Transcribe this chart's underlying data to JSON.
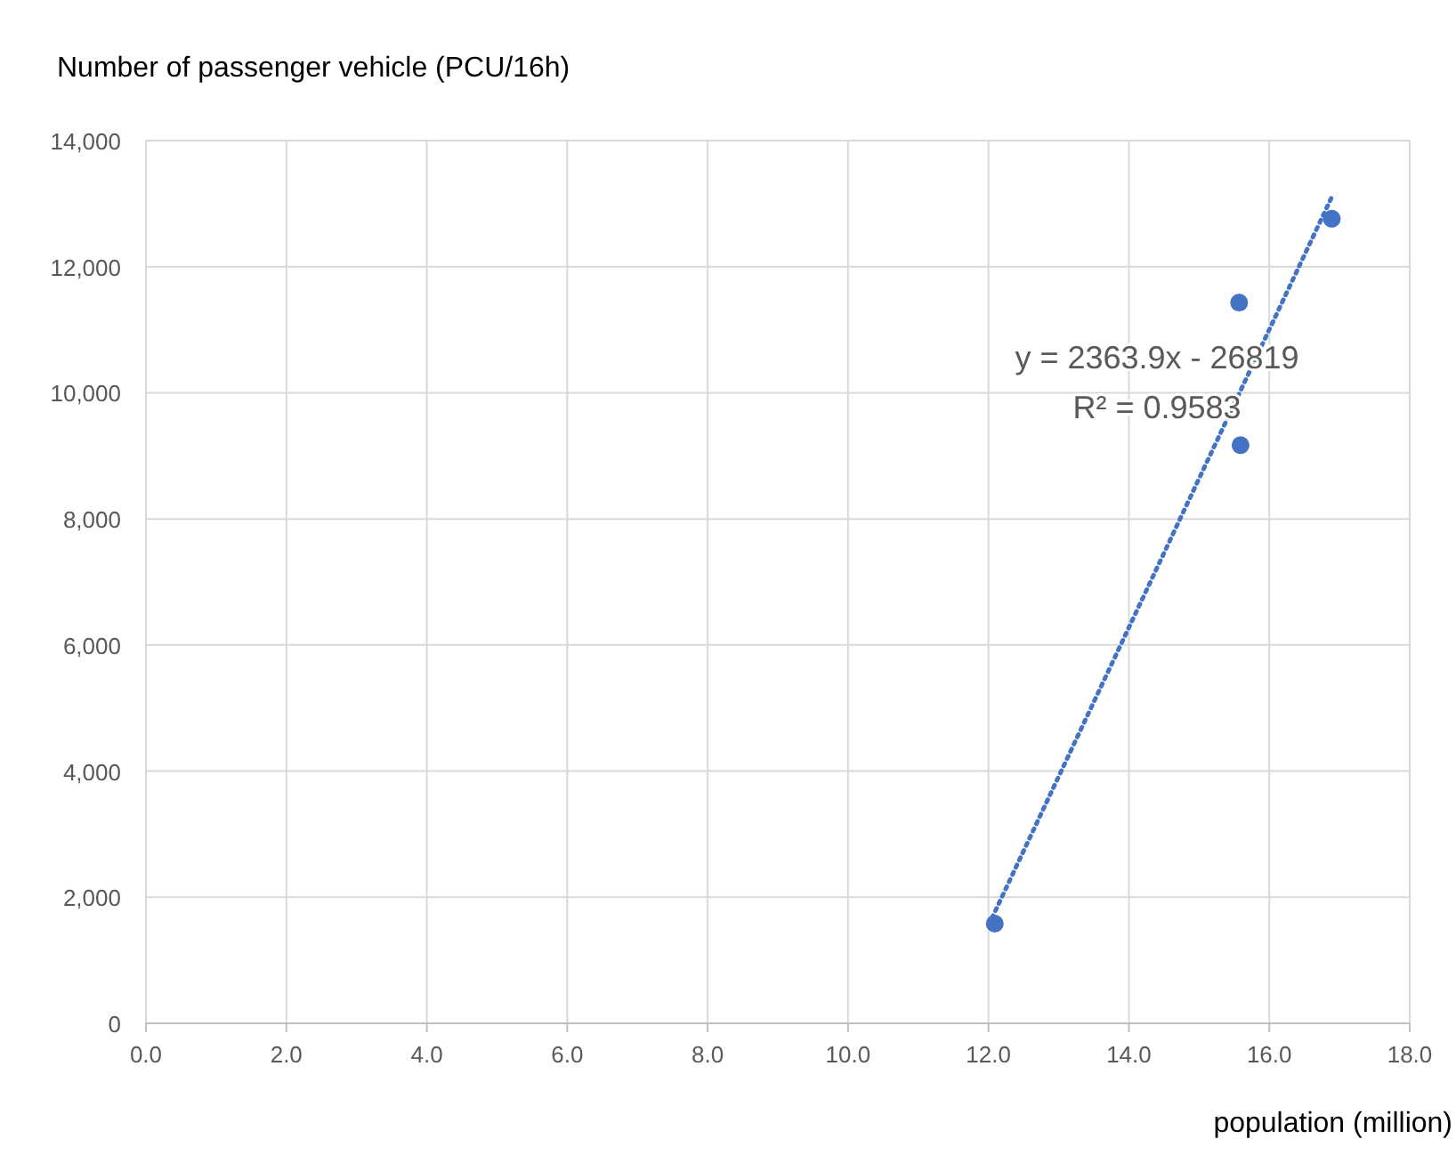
{
  "chart_data": {
    "type": "scatter",
    "ylabel": "Number of passenger vehicle (PCU/16h)",
    "xlabel": "population (million)",
    "series": [
      {
        "color": "#4472c4",
        "x": [
          12.09,
          15.57,
          15.59,
          16.89
        ],
        "values": [
          1580,
          11430,
          9170,
          12760
        ],
        "marker": "circle"
      },
      {
        "type": "line",
        "color": "#4472c4",
        "x": [
          12.05,
          16.9
        ],
        "values": [
          1670,
          13130
        ],
        "line_style": "dotted"
      }
    ],
    "annotations": [
      "y = 2363.9x - 26819",
      "R² = 0.9583"
    ],
    "xlim": [
      0,
      18
    ],
    "xticks": [
      {
        "value": 0,
        "label": "0.0"
      },
      {
        "value": 2,
        "label": "2.0"
      },
      {
        "value": 4,
        "label": "4.0"
      },
      {
        "value": 6,
        "label": "6.0"
      },
      {
        "value": 8,
        "label": "8.0"
      },
      {
        "value": 10,
        "label": "10.0"
      },
      {
        "value": 12,
        "label": "12.0"
      },
      {
        "value": 14,
        "label": "14.0"
      },
      {
        "value": 16,
        "label": "16.0"
      },
      {
        "value": 18,
        "label": "18.0"
      }
    ],
    "ylim": [
      0,
      14000
    ],
    "yticks": [
      {
        "value": 0,
        "label": "0"
      },
      {
        "value": 2000,
        "label": "2,000"
      },
      {
        "value": 4000,
        "label": "4,000"
      },
      {
        "value": 6000,
        "label": "6,000"
      },
      {
        "value": 8000,
        "label": "8,000"
      },
      {
        "value": 10000,
        "label": "10,000"
      },
      {
        "value": 12000,
        "label": "12,000"
      },
      {
        "value": 14000,
        "label": "14,000"
      }
    ],
    "grid": true
  }
}
